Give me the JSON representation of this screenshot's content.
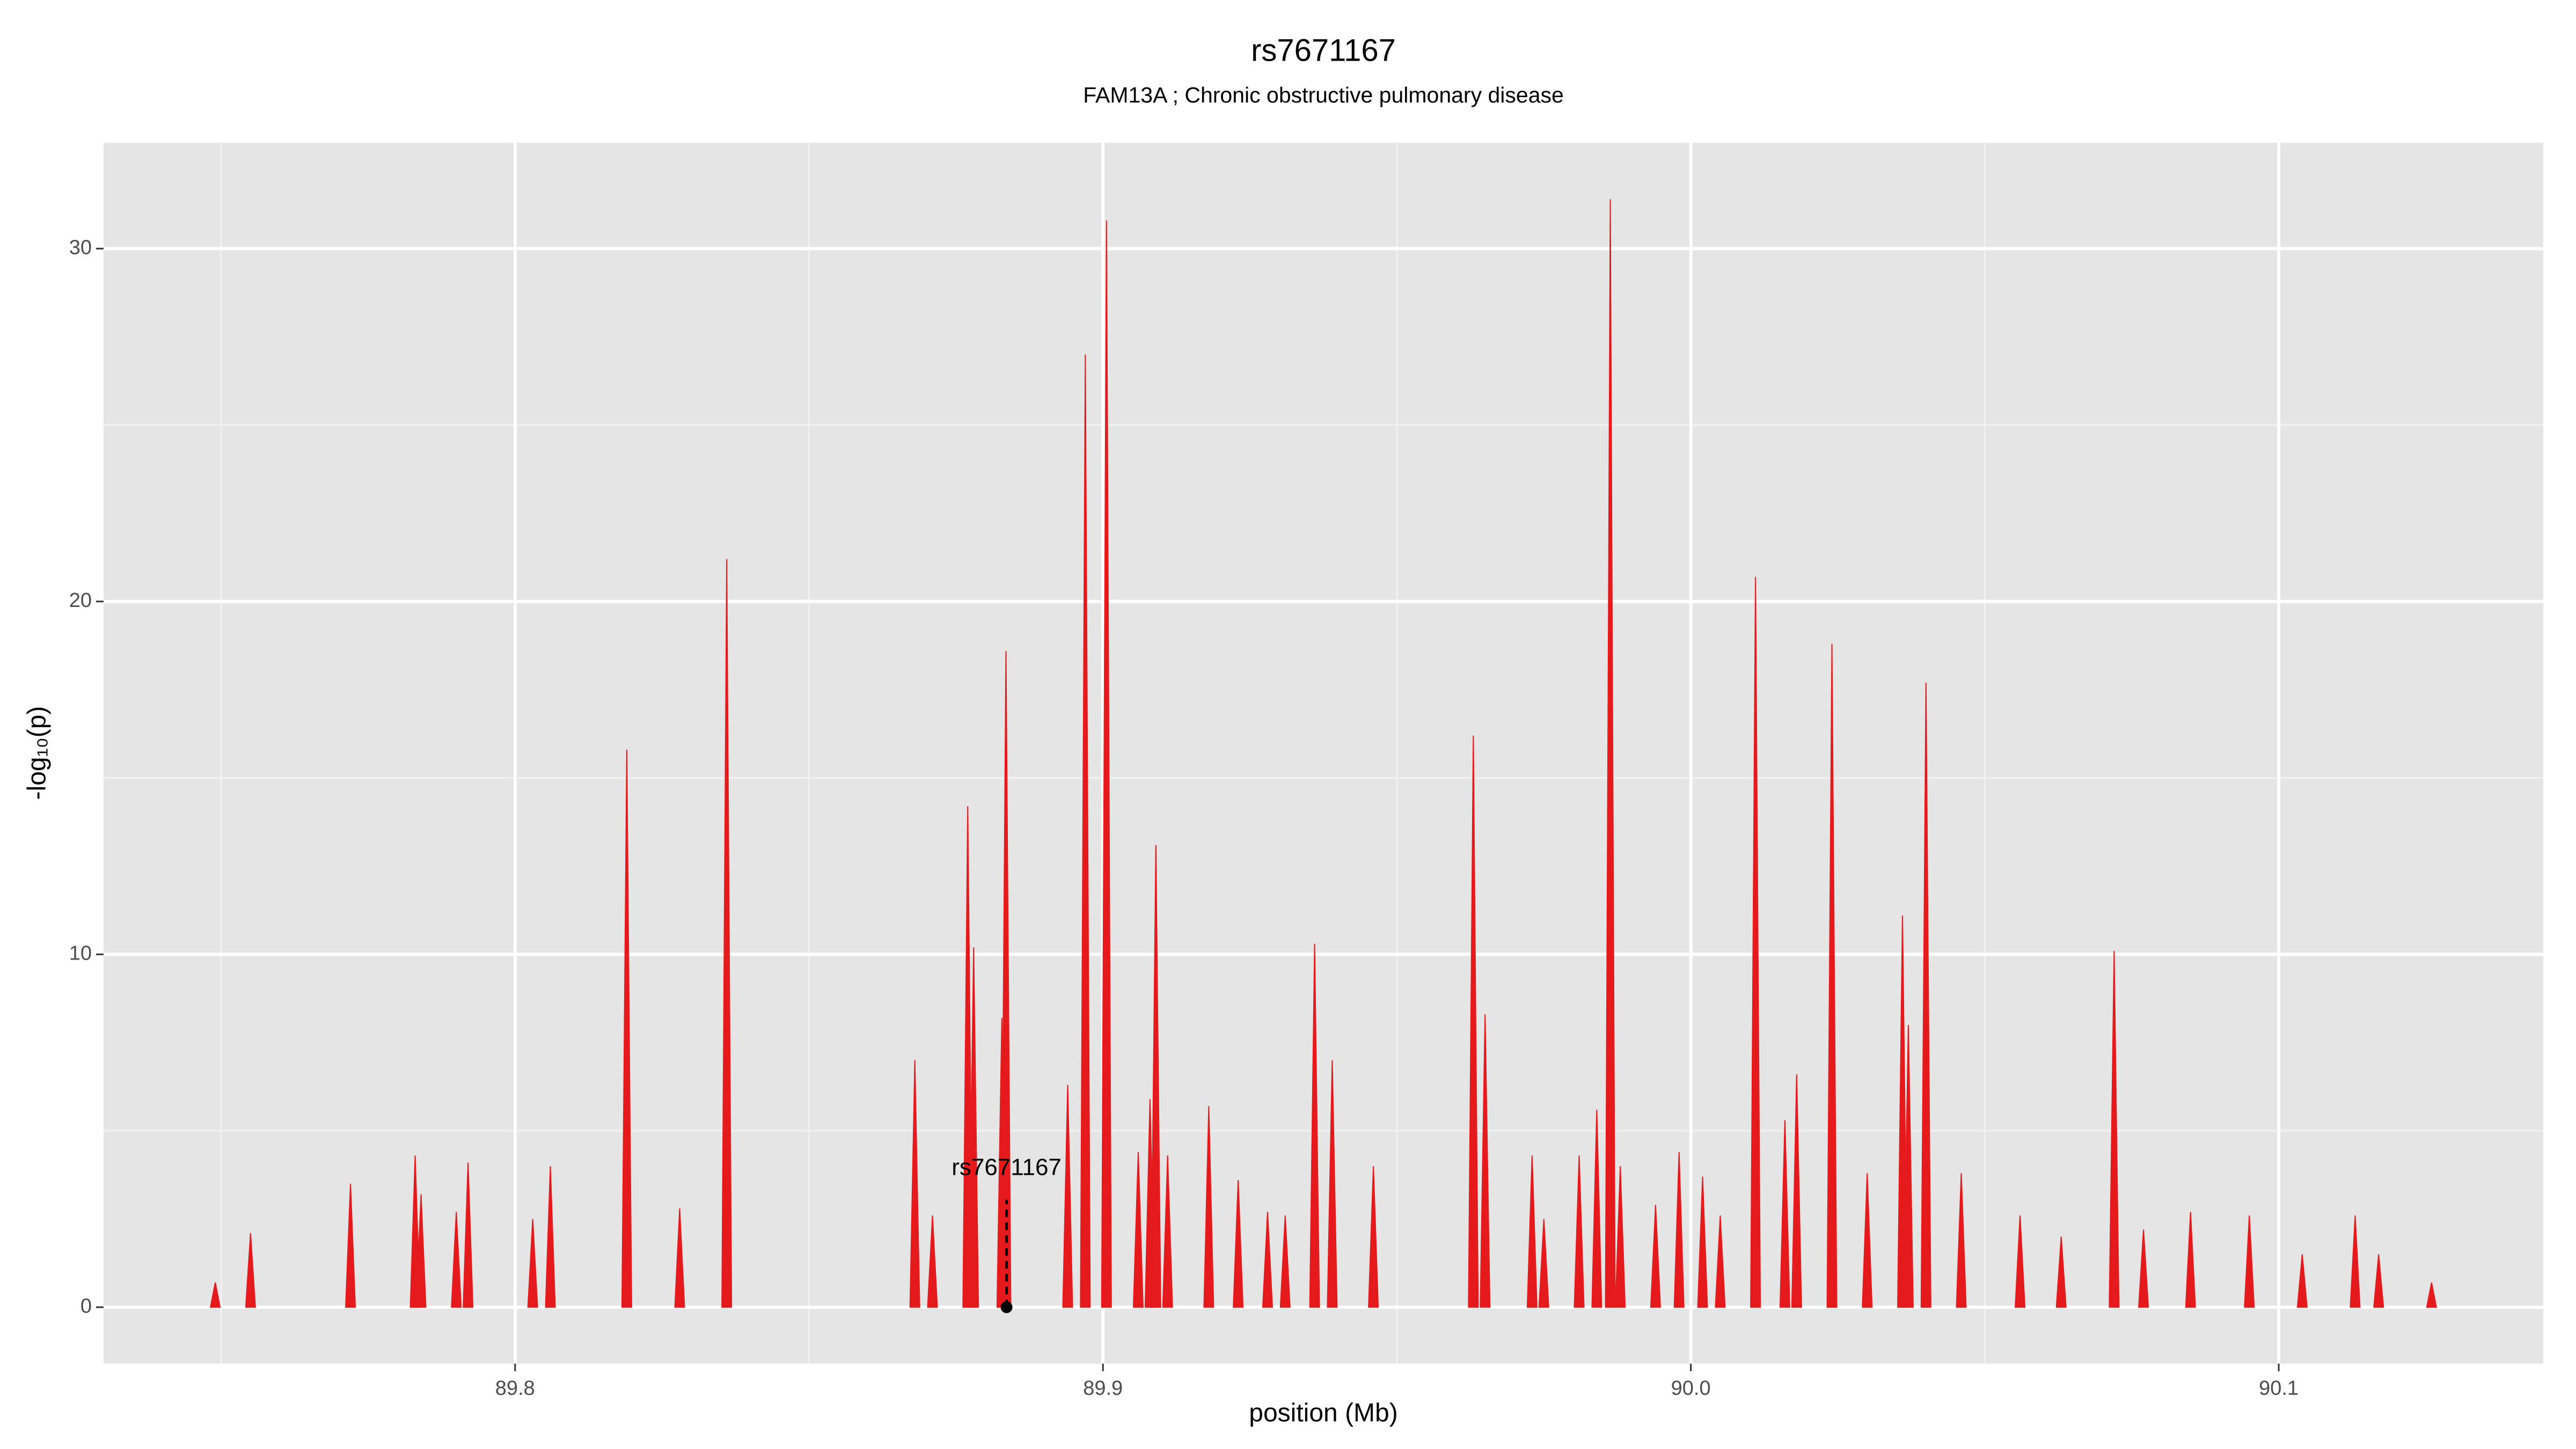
{
  "chart_data": {
    "type": "spike",
    "title": "rs7671167",
    "subtitle": "FAM13A ; Chronic obstructive pulmonary disease",
    "xlabel": "position (Mb)",
    "ylabel": "-log₁₀(p)",
    "color": "#e41a1c",
    "x": [
      89.749,
      89.755,
      89.772,
      89.783,
      89.784,
      89.79,
      89.792,
      89.803,
      89.806,
      89.819,
      89.828,
      89.836,
      89.868,
      89.871,
      89.877,
      89.878,
      89.8828,
      89.8835,
      89.894,
      89.897,
      89.9006,
      89.906,
      89.908,
      89.909,
      89.911,
      89.918,
      89.923,
      89.928,
      89.931,
      89.936,
      89.939,
      89.946,
      89.963,
      89.965,
      89.973,
      89.975,
      89.981,
      89.984,
      89.9863,
      89.988,
      89.994,
      89.998,
      90.002,
      90.005,
      90.011,
      90.016,
      90.018,
      90.024,
      90.03,
      90.036,
      90.037,
      90.04,
      90.046,
      90.056,
      90.063,
      90.072,
      90.077,
      90.085,
      90.095,
      90.104,
      90.113,
      90.117,
      90.126
    ],
    "values": [
      0.7,
      2.1,
      3.5,
      4.3,
      3.2,
      2.7,
      4.1,
      2.5,
      4.0,
      15.8,
      2.8,
      21.2,
      7.0,
      2.6,
      14.2,
      10.2,
      8.2,
      18.6,
      6.3,
      27.0,
      30.8,
      4.4,
      5.9,
      13.1,
      4.3,
      5.7,
      3.6,
      2.7,
      2.6,
      10.3,
      7.0,
      4.0,
      16.2,
      8.3,
      4.3,
      2.5,
      4.3,
      5.6,
      31.4,
      4.0,
      2.9,
      4.4,
      3.7,
      2.6,
      20.7,
      5.3,
      6.6,
      18.8,
      3.8,
      11.1,
      8.0,
      17.7,
      3.8,
      2.6,
      2.0,
      10.1,
      2.2,
      2.7,
      2.6,
      1.5,
      2.6,
      1.5,
      0.7
    ],
    "annotation": {
      "text": "rs7671167",
      "x": 89.8836,
      "y": 0
    },
    "xlim": [
      89.73,
      90.145
    ],
    "ylim": [
      -1.6,
      33
    ],
    "xticks": [
      89.8,
      89.9,
      {
        "value": 90.0,
        "label": "90.0"
      },
      90.1
    ],
    "xminorticks": [
      89.75,
      89.85,
      89.95,
      90.05
    ],
    "yticks": [
      0,
      10,
      20,
      30
    ],
    "yminorticks": [
      5,
      15,
      25
    ],
    "grid": true
  }
}
